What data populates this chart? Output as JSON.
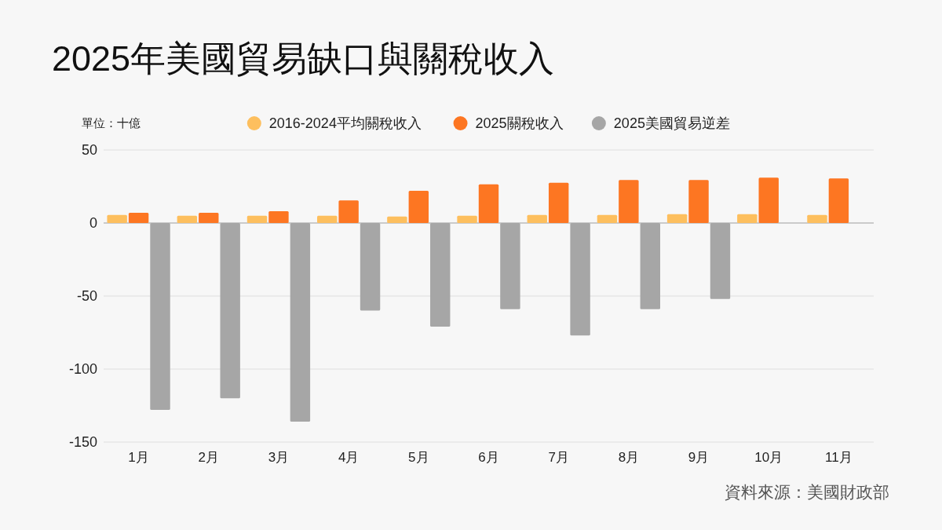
{
  "chart_data": {
    "type": "bar",
    "title": "2025年美國貿易缺口與關稅收入",
    "ylabel": "單位：十億",
    "categories": [
      "1月",
      "2月",
      "3月",
      "4月",
      "5月",
      "6月",
      "7月",
      "8月",
      "9月",
      "10月",
      "11月"
    ],
    "series": [
      {
        "name": "2016-2024平均關稅收入",
        "color": "#fdbf5e",
        "values": [
          5.5,
          5,
          5,
          5,
          4.5,
          5,
          5.5,
          5.5,
          6,
          6,
          5.5
        ]
      },
      {
        "name": "2025關稅收入",
        "color": "#fd7622",
        "values": [
          7,
          7,
          8,
          15.5,
          22,
          26.5,
          27.5,
          29.5,
          29.5,
          31,
          30.5
        ]
      },
      {
        "name": "2025美國貿易逆差",
        "color": "#a6a6a6",
        "values": [
          -128,
          -120,
          -136,
          -60,
          -71,
          -59,
          -77,
          -59,
          -52,
          null,
          null
        ]
      }
    ],
    "ylim": [
      -150,
      50
    ],
    "yticks": [
      -150,
      -100,
      -50,
      0,
      50
    ],
    "grid": "y",
    "legend": "top",
    "annotations": [
      "資料來源：美國財政部"
    ]
  }
}
